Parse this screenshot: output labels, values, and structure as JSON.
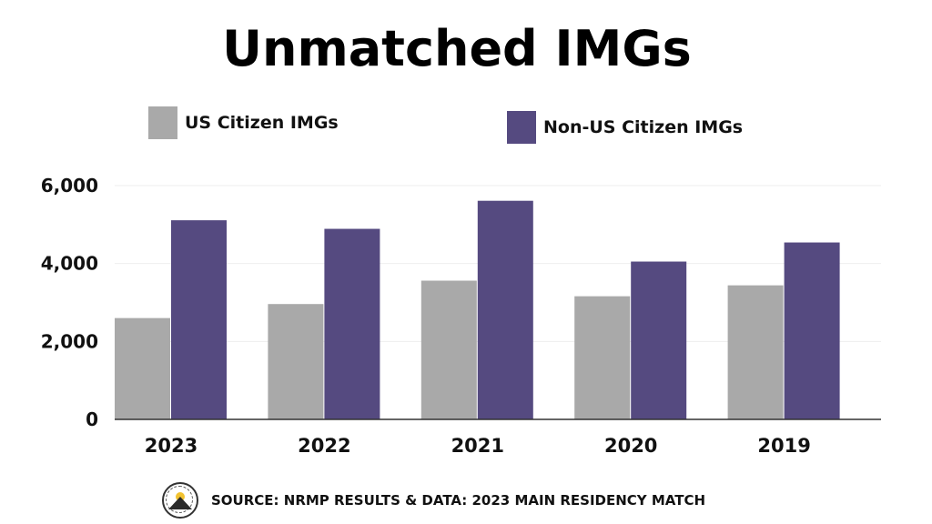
{
  "colors": {
    "us": "#a9a9a9",
    "nonus": "#554a80",
    "grid": "#eeeeee",
    "axis": "#333333"
  },
  "chart_data": {
    "type": "bar",
    "title": "Unmatched IMGs",
    "categories": [
      "2023",
      "2022",
      "2021",
      "2020",
      "2019"
    ],
    "series": [
      {
        "name": "US Citizen IMGs",
        "values": [
          2600,
          2960,
          3560,
          3160,
          3440
        ]
      },
      {
        "name": "Non-US Citizen IMGs",
        "values": [
          5110,
          4890,
          5610,
          4050,
          4540
        ]
      }
    ],
    "yticks": [
      "0",
      "2,000",
      "4,000",
      "6,000"
    ],
    "ytick_values": [
      0,
      2000,
      4000,
      6000
    ],
    "ylim": [
      0,
      6000
    ],
    "grid": true,
    "legend": "top"
  },
  "source": {
    "text": "SOURCE: NRMP RESULTS & DATA: 2023 MAIN RESIDENCY MATCH",
    "seal_icon": "organization-seal-icon"
  }
}
